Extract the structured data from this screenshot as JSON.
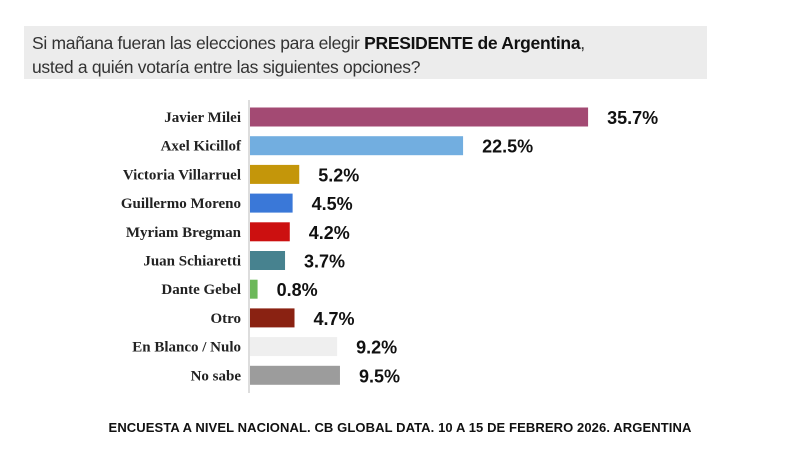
{
  "chart_data": {
    "type": "bar",
    "orientation": "horizontal",
    "title_parts": {
      "pre": "Si mañana fueran las elecciones para elegir ",
      "bold": "PRESIDENTE de Argentina",
      "post": ",",
      "line2": "usted a quién votaría entre las siguientes opciones?"
    },
    "categories": [
      "Javier Milei",
      "Axel Kicillof",
      "Victoria Villarruel",
      "Guillermo Moreno",
      "Myriam Bregman",
      "Juan Schiaretti",
      "Dante Gebel",
      "Otro",
      "En Blanco / Nulo",
      "No sabe"
    ],
    "values": [
      35.7,
      22.5,
      5.2,
      4.5,
      4.2,
      3.7,
      0.8,
      4.7,
      9.2,
      9.5
    ],
    "data_labels": [
      "35.7%",
      "22.5%",
      "5.2%",
      "4.5%",
      "4.2%",
      "3.7%",
      "0.8%",
      "4.7%",
      "9.2%",
      "9.5%"
    ],
    "colors": [
      "#a34a73",
      "#72aee0",
      "#c4960a",
      "#3a78d8",
      "#cc1010",
      "#47828f",
      "#6cb85a",
      "#8a2212",
      "#efefef",
      "#9c9c9c"
    ],
    "grid": false,
    "legend": "none"
  },
  "footer": "ENCUESTA A NIVEL NACIONAL. CB GLOBAL DATA. 10 A 15 DE FEBRERO 2026. ARGENTINA"
}
